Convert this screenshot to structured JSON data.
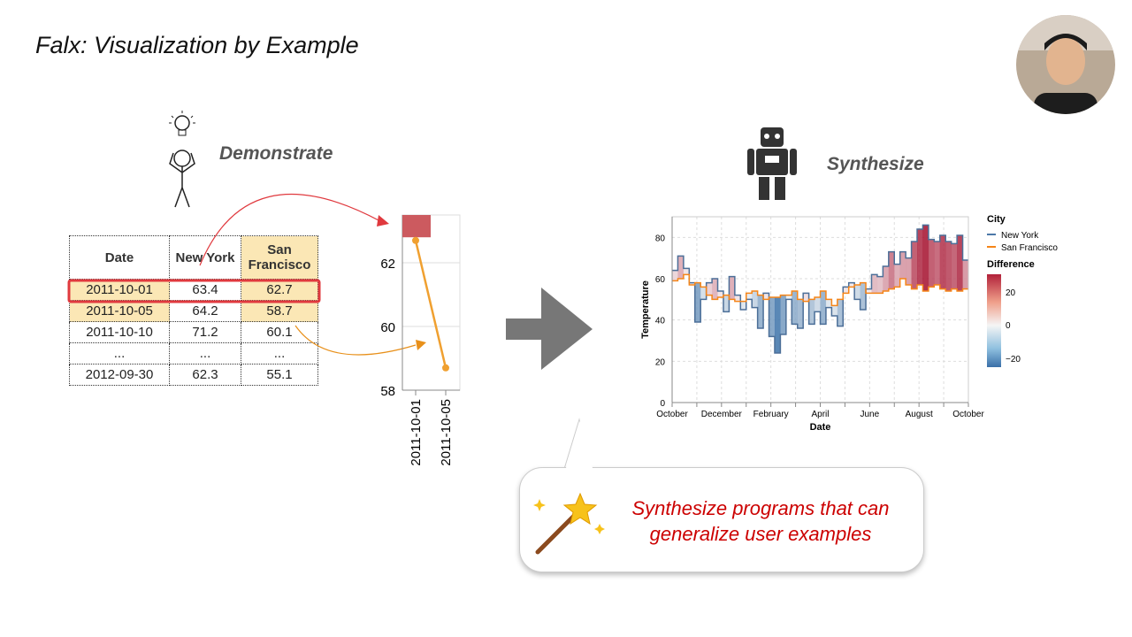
{
  "slide": {
    "title": "Falx: Visualization by Example",
    "demonstrate_label": "Demonstrate",
    "synthesize_label": "Synthesize",
    "bubble_line1": "Synthesize programs that can",
    "bubble_line2": "generalize user examples"
  },
  "icons": [
    "lightbulb-icon",
    "stick-figure-icon",
    "robot-icon",
    "right-arrow-icon",
    "magic-wand-icon",
    "presenter-avatar"
  ],
  "colors": {
    "highlight": "#fbe7b5",
    "selection": "#e0393e",
    "sf_orange": "#f0a030",
    "text_red": "#cc0000",
    "ny_blue": "#4c78a8",
    "sf_line": "#f58518"
  },
  "table": {
    "headers": [
      "Date",
      "New York",
      "San Francisco"
    ],
    "rows": [
      [
        "2011-10-01",
        "63.4",
        "62.7"
      ],
      [
        "2011-10-05",
        "64.2",
        "58.7"
      ],
      [
        "2011-10-10",
        "71.2",
        "60.1"
      ],
      [
        "...",
        "...",
        "..."
      ],
      [
        "2012-09-30",
        "62.3",
        "55.1"
      ]
    ]
  },
  "chart_data": [
    {
      "type": "line",
      "x": [
        "2011-10-01",
        "2011-10-05"
      ],
      "values": [
        62.7,
        58.7
      ],
      "rect": {
        "x": "2011-10-01",
        "y_top": 63.5,
        "y_bottom": 62.8
      },
      "ylim": [
        58,
        63.5
      ],
      "yticks": [
        58,
        60,
        62
      ],
      "grid": true
    },
    {
      "type": "area",
      "xlabel": "Date",
      "ylabel": "Temperature",
      "ylim": [
        0,
        90
      ],
      "yticks": [
        0,
        20,
        40,
        60,
        80
      ],
      "xtick_labels": [
        "October",
        "December",
        "February",
        "April",
        "June",
        "August",
        "October"
      ],
      "legend": {
        "city_title": "City",
        "difference_title": "Difference",
        "difference_ticks": [
          "20",
          "0",
          "−20"
        ],
        "placement": "right"
      },
      "dates": [
        "2011-10-01",
        "2011-10-08",
        "2011-10-15",
        "2011-10-22",
        "2011-10-29",
        "2011-11-05",
        "2011-11-12",
        "2011-11-19",
        "2011-11-26",
        "2011-12-03",
        "2011-12-10",
        "2011-12-17",
        "2011-12-24",
        "2011-12-31",
        "2012-01-07",
        "2012-01-14",
        "2012-01-21",
        "2012-01-28",
        "2012-02-04",
        "2012-02-11",
        "2012-02-18",
        "2012-02-25",
        "2012-03-03",
        "2012-03-10",
        "2012-03-17",
        "2012-03-24",
        "2012-03-31",
        "2012-04-07",
        "2012-04-14",
        "2012-04-21",
        "2012-04-28",
        "2012-05-05",
        "2012-05-12",
        "2012-05-19",
        "2012-05-26",
        "2012-06-02",
        "2012-06-09",
        "2012-06-16",
        "2012-06-23",
        "2012-06-30",
        "2012-07-07",
        "2012-07-14",
        "2012-07-21",
        "2012-07-28",
        "2012-08-04",
        "2012-08-11",
        "2012-08-18",
        "2012-08-25",
        "2012-09-01",
        "2012-09-08",
        "2012-09-15",
        "2012-09-22"
      ],
      "series": [
        {
          "name": "New York",
          "values": [
            64,
            71,
            65,
            58,
            39,
            50,
            58,
            60,
            54,
            44,
            61,
            52,
            45,
            50,
            46,
            36,
            53,
            32,
            24,
            33,
            50,
            38,
            36,
            53,
            38,
            44,
            38,
            46,
            42,
            37,
            56,
            58,
            50,
            45,
            55,
            62,
            61,
            66,
            73,
            67,
            73,
            70,
            78,
            84,
            86,
            79,
            78,
            81,
            78,
            77,
            81,
            69
          ]
        },
        {
          "name": "San Francisco",
          "values": [
            59,
            60,
            62,
            57,
            58,
            56,
            52,
            50,
            51,
            52,
            50,
            49,
            49,
            53,
            54,
            52,
            50,
            51,
            51,
            52,
            52,
            54,
            50,
            49,
            50,
            51,
            54,
            50,
            47,
            50,
            53,
            56,
            57,
            58,
            53,
            53,
            53,
            54,
            55,
            56,
            60,
            57,
            55,
            57,
            54,
            56,
            57,
            55,
            54,
            55,
            54,
            55
          ]
        }
      ]
    }
  ]
}
